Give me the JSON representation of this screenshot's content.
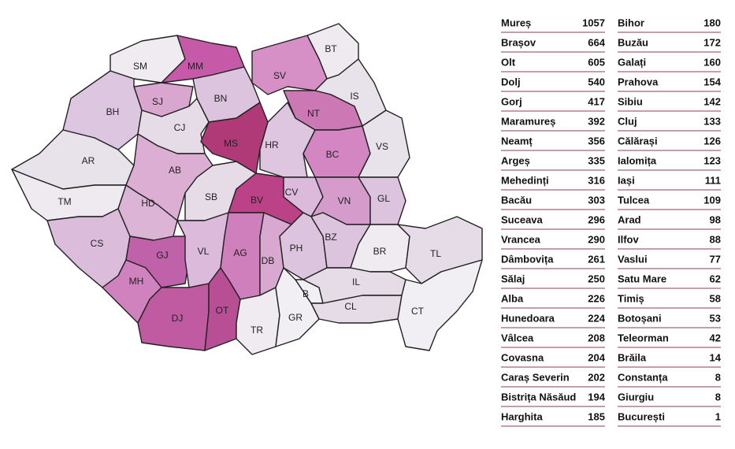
{
  "map": {
    "labels": [
      "SM",
      "MM",
      "BT",
      "SV",
      "SJ",
      "BN",
      "IS",
      "BH",
      "CJ",
      "MS",
      "NT",
      "HR",
      "BC",
      "VS",
      "AR",
      "AB",
      "SB",
      "BV",
      "CV",
      "VN",
      "GL",
      "TM",
      "HD",
      "CS",
      "GJ",
      "VL",
      "AG",
      "DB",
      "PH",
      "BZ",
      "BR",
      "TL",
      "MH",
      "DJ",
      "OT",
      "TR",
      "GR",
      "B",
      "IL",
      "CL",
      "CT"
    ]
  },
  "table": {
    "columns": [
      [
        [
          "Mureș",
          1057
        ],
        [
          "Brașov",
          664
        ],
        [
          "Olt",
          605
        ],
        [
          "Dolj",
          540
        ],
        [
          "Gorj",
          417
        ],
        [
          "Maramureș",
          392
        ],
        [
          "Neamț",
          356
        ],
        [
          "Argeș",
          335
        ],
        [
          "Mehedinți",
          316
        ],
        [
          "Bacău",
          303
        ],
        [
          "Suceava",
          296
        ],
        [
          "Vrancea",
          290
        ],
        [
          "Dâmbovița",
          261
        ],
        [
          "Sălaj",
          250
        ],
        [
          "Alba",
          226
        ],
        [
          "Hunedoara",
          224
        ],
        [
          "Vâlcea",
          208
        ],
        [
          "Covasna",
          204
        ],
        [
          "Caraș Severin",
          202
        ],
        [
          "Bistrița Năsăud",
          194
        ],
        [
          "Harghita",
          185
        ]
      ],
      [
        [
          "Bihor",
          180
        ],
        [
          "Buzău",
          172
        ],
        [
          "Galați",
          160
        ],
        [
          "Prahova",
          154
        ],
        [
          "Sibiu",
          142
        ],
        [
          "Cluj",
          133
        ],
        [
          "Călărași",
          126
        ],
        [
          "Ialomița",
          123
        ],
        [
          "Iași",
          111
        ],
        [
          "Tulcea",
          109
        ],
        [
          "Arad",
          98
        ],
        [
          "Ilfov",
          88
        ],
        [
          "Vaslui",
          77
        ],
        [
          "Satu Mare",
          62
        ],
        [
          "Timiș",
          58
        ],
        [
          "Botoșani",
          53
        ],
        [
          "Teleorman",
          42
        ],
        [
          "Brăila",
          14
        ],
        [
          "Constanța",
          8
        ],
        [
          "Giurgiu",
          8
        ],
        [
          "București",
          1
        ]
      ]
    ]
  }
}
